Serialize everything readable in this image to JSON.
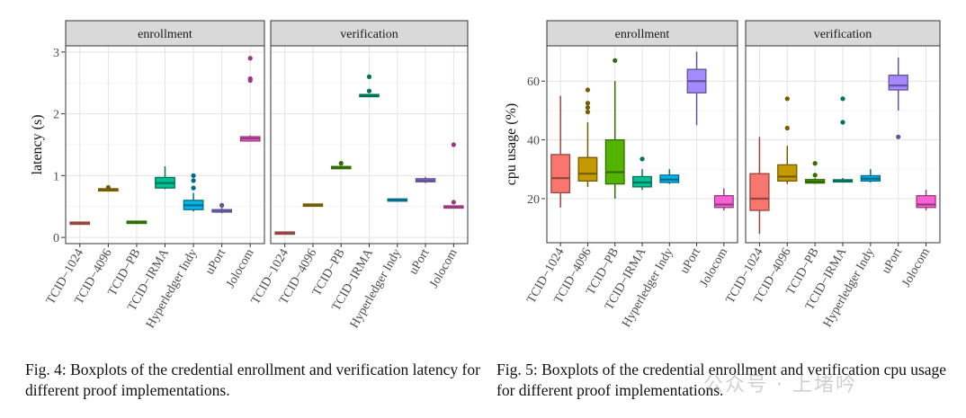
{
  "chart_data": [
    {
      "type": "boxplot",
      "facets": [
        "enrollment",
        "verification"
      ],
      "ylabel": "latency (s)",
      "xlabel": "",
      "ylim": [
        -0.1,
        3.1
      ],
      "yticks": [
        0,
        1,
        2,
        3
      ],
      "grid": true,
      "categories": [
        "TCID−1024",
        "TCID−4096",
        "TCID−PB",
        "TCID−IRMA",
        "Hyperledger Indy",
        "uPort",
        "Jolocom"
      ],
      "colors": [
        "#F8766D",
        "#C49A00",
        "#53B400",
        "#00C094",
        "#00B6EB",
        "#A58AFF",
        "#FB61D7"
      ],
      "series": [
        {
          "facet": "enrollment",
          "boxes": [
            {
              "min": 0.21,
              "q1": 0.22,
              "median": 0.23,
              "q3": 0.24,
              "max": 0.25,
              "outliers": []
            },
            {
              "min": 0.75,
              "q1": 0.76,
              "median": 0.77,
              "q3": 0.78,
              "max": 0.8,
              "outliers": [
                0.81
              ]
            },
            {
              "min": 0.23,
              "q1": 0.235,
              "median": 0.245,
              "q3": 0.255,
              "max": 0.26,
              "outliers": []
            },
            {
              "min": 0.78,
              "q1": 0.8,
              "median": 0.88,
              "q3": 0.97,
              "max": 1.15,
              "outliers": []
            },
            {
              "min": 0.42,
              "q1": 0.45,
              "median": 0.52,
              "q3": 0.6,
              "max": 0.72,
              "outliers": [
                0.8,
                0.92,
                1.0
              ]
            },
            {
              "min": 0.39,
              "q1": 0.41,
              "median": 0.43,
              "q3": 0.45,
              "max": 0.48,
              "outliers": [
                0.52
              ]
            },
            {
              "min": 1.55,
              "q1": 1.56,
              "median": 1.6,
              "q3": 1.63,
              "max": 1.65,
              "outliers": [
                2.54,
                2.57,
                2.9
              ]
            }
          ]
        },
        {
          "facet": "verification",
          "boxes": [
            {
              "min": 0.06,
              "q1": 0.065,
              "median": 0.07,
              "q3": 0.075,
              "max": 0.08,
              "outliers": []
            },
            {
              "min": 0.51,
              "q1": 0.515,
              "median": 0.52,
              "q3": 0.53,
              "max": 0.54,
              "outliers": []
            },
            {
              "min": 1.11,
              "q1": 1.12,
              "median": 1.13,
              "q3": 1.14,
              "max": 1.16,
              "outliers": [
                1.2
              ]
            },
            {
              "min": 2.27,
              "q1": 2.28,
              "median": 2.3,
              "q3": 2.31,
              "max": 2.32,
              "outliers": [
                2.37,
                2.6
              ]
            },
            {
              "min": 0.6,
              "q1": 0.6,
              "median": 0.61,
              "q3": 0.61,
              "max": 0.62,
              "outliers": []
            },
            {
              "min": 0.88,
              "q1": 0.9,
              "median": 0.92,
              "q3": 0.95,
              "max": 0.98,
              "outliers": []
            },
            {
              "min": 0.48,
              "q1": 0.485,
              "median": 0.49,
              "q3": 0.5,
              "max": 0.51,
              "outliers": [
                0.57,
                1.5
              ]
            }
          ]
        }
      ]
    },
    {
      "type": "boxplot",
      "facets": [
        "enrollment",
        "verification"
      ],
      "ylabel": "cpu usage (%)",
      "xlabel": "",
      "ylim": [
        5,
        72
      ],
      "yticks": [
        20,
        40,
        60
      ],
      "grid": true,
      "categories": [
        "TCID−1024",
        "TCID−4096",
        "TCID−PB",
        "TCID−IRMA",
        "Hyperledger Indy",
        "uPort",
        "Jolocom"
      ],
      "colors": [
        "#F8766D",
        "#C49A00",
        "#53B400",
        "#00C094",
        "#00B6EB",
        "#A58AFF",
        "#FB61D7"
      ],
      "series": [
        {
          "facet": "enrollment",
          "boxes": [
            {
              "min": 17,
              "q1": 22,
              "median": 27,
              "q3": 35,
              "max": 55,
              "outliers": []
            },
            {
              "min": 24,
              "q1": 26,
              "median": 28.5,
              "q3": 34,
              "max": 46,
              "outliers": [
                49.5,
                51,
                52.5,
                57
              ]
            },
            {
              "min": 20,
              "q1": 25,
              "median": 29,
              "q3": 40,
              "max": 60,
              "outliers": [
                67
              ]
            },
            {
              "min": 23,
              "q1": 24,
              "median": 25.5,
              "q3": 27.5,
              "max": 30,
              "outliers": [
                33.5
              ]
            },
            {
              "min": 25,
              "q1": 25.5,
              "median": 26.5,
              "q3": 28,
              "max": 30,
              "outliers": []
            },
            {
              "min": 45,
              "q1": 56,
              "median": 60,
              "q3": 64,
              "max": 70,
              "outliers": []
            },
            {
              "min": 16,
              "q1": 17,
              "median": 18,
              "q3": 21,
              "max": 23.5,
              "outliers": []
            }
          ]
        },
        {
          "facet": "verification",
          "boxes": [
            {
              "min": 8,
              "q1": 16,
              "median": 20,
              "q3": 28.5,
              "max": 41,
              "outliers": []
            },
            {
              "min": 25,
              "q1": 26,
              "median": 27.5,
              "q3": 31.5,
              "max": 38,
              "outliers": [
                44,
                54
              ]
            },
            {
              "min": 25,
              "q1": 25.3,
              "median": 25.8,
              "q3": 26.5,
              "max": 27,
              "outliers": [
                28,
                32
              ]
            },
            {
              "min": 25.5,
              "q1": 25.7,
              "median": 26,
              "q3": 26.4,
              "max": 27,
              "outliers": [
                46,
                54
              ]
            },
            {
              "min": 25.5,
              "q1": 26,
              "median": 26.8,
              "q3": 27.8,
              "max": 30,
              "outliers": []
            },
            {
              "min": 50,
              "q1": 57,
              "median": 58.5,
              "q3": 62,
              "max": 68,
              "outliers": [
                41
              ]
            },
            {
              "min": 16,
              "q1": 17,
              "median": 18,
              "q3": 21,
              "max": 23,
              "outliers": []
            }
          ]
        }
      ]
    }
  ],
  "captions": {
    "fig4": "Fig. 4: Boxplots of the credential enrollment and verification latency for different proof implementations.",
    "fig5": "Fig. 5: Boxplots of the credential enrollment and verification cpu usage for different proof implementations."
  },
  "watermark": "公众号 · 上堵吟"
}
